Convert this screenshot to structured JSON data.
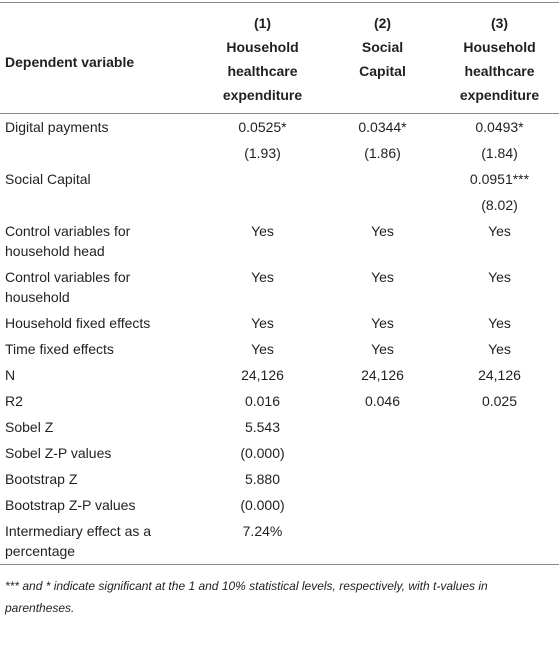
{
  "table": {
    "column_numbers": [
      "(1)",
      "(2)",
      "(3)"
    ],
    "header_label": "Dependent variable",
    "column_headers": [
      "Household healthcare expenditure",
      "Social Capital",
      "Household healthcare expenditure"
    ],
    "rows": [
      [
        "Digital payments",
        "0.0525*",
        "0.0344*",
        "0.0493*"
      ],
      [
        null,
        "(1.93)",
        "(1.86)",
        "(1.84)"
      ],
      [
        "Social Capital",
        null,
        null,
        "0.0951***"
      ],
      [
        null,
        null,
        null,
        "(8.02)"
      ],
      [
        "Control variables for household head",
        "Yes",
        "Yes",
        "Yes"
      ],
      [
        "Control variables for household",
        "Yes",
        "Yes",
        "Yes"
      ],
      [
        "Household fixed effects",
        "Yes",
        "Yes",
        "Yes"
      ],
      [
        "Time fixed effects",
        "Yes",
        "Yes",
        "Yes"
      ],
      [
        "N",
        "24,126",
        "24,126",
        "24,126"
      ],
      [
        "R2",
        "0.016",
        "0.046",
        "0.025"
      ],
      [
        "Sobel Z",
        "5.543",
        null,
        null
      ],
      [
        "Sobel Z-P values",
        "(0.000)",
        null,
        null
      ],
      [
        "Bootstrap Z",
        "5.880",
        null,
        null
      ],
      [
        "Bootstrap Z-P values",
        "(0.000)",
        null,
        null
      ],
      [
        "Intermediary effect as a percentage",
        "7.24%",
        null,
        null
      ]
    ],
    "footnote": "*** and * indicate significant at the 1 and 10% statistical levels, respectively, with t-values in parentheses."
  }
}
